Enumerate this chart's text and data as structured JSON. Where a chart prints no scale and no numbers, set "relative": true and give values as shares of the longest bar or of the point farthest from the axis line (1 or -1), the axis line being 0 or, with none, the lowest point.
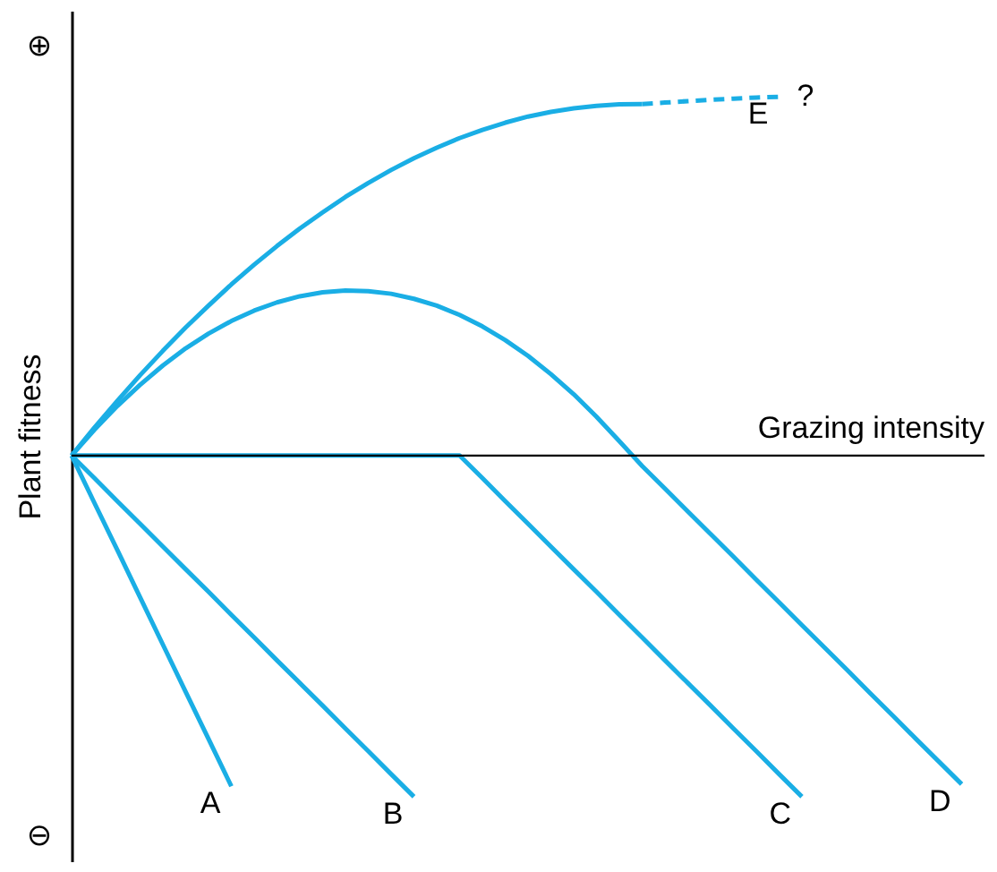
{
  "chart_data": {
    "type": "line",
    "relative": true,
    "xlabel": "Grazing intensity",
    "ylabel": "Plant fitness",
    "tick_labels": false,
    "grid": false,
    "marker": "none",
    "annotations": [
      "⊕",
      "⊖",
      "?"
    ],
    "categories": [
      null,
      null,
      null,
      null,
      null,
      null,
      null,
      null,
      null,
      null,
      null,
      null,
      null,
      null,
      null,
      null,
      null,
      null,
      null,
      null,
      null,
      null,
      null,
      null,
      null,
      null,
      null,
      null,
      null,
      null,
      null,
      null,
      null,
      null,
      null,
      null,
      null,
      null,
      null,
      null,
      null
    ],
    "series": [
      {
        "name": "A",
        "color": "#1aaee5",
        "values": [
          0,
          -0.132,
          -0.263,
          -0.395,
          -0.527,
          -0.659,
          -0.79,
          -0.922,
          null,
          null,
          null,
          null,
          null,
          null,
          null,
          null,
          null,
          null,
          null,
          null,
          null,
          null,
          null,
          null,
          null,
          null,
          null,
          null,
          null,
          null,
          null,
          null,
          null,
          null,
          null,
          null,
          null,
          null,
          null,
          null,
          null
        ]
      },
      {
        "name": "B",
        "color": "#1aaee5",
        "values": [
          0,
          -0.063,
          -0.127,
          -0.19,
          -0.254,
          -0.317,
          -0.38,
          -0.444,
          -0.507,
          -0.571,
          -0.634,
          -0.697,
          -0.761,
          -0.824,
          -0.888,
          -0.951,
          null,
          null,
          null,
          null,
          null,
          null,
          null,
          null,
          null,
          null,
          null,
          null,
          null,
          null,
          null,
          null,
          null,
          null,
          null,
          null,
          null,
          null,
          null,
          null,
          null
        ]
      },
      {
        "name": "C",
        "color": "#1aaee5",
        "values": [
          0,
          0,
          0,
          0,
          0,
          0,
          0,
          0,
          0,
          0,
          0,
          0,
          0,
          0,
          0,
          0,
          0,
          0,
          -0.063,
          -0.127,
          -0.19,
          -0.254,
          -0.317,
          -0.38,
          -0.444,
          -0.507,
          -0.571,
          -0.634,
          -0.697,
          -0.761,
          -0.824,
          -0.888,
          -0.951,
          null,
          null,
          null,
          null,
          null,
          null,
          null,
          null
        ]
      },
      {
        "name": "D",
        "color": "#1aaee5",
        "values": [
          0,
          0.072,
          0.138,
          0.197,
          0.251,
          0.299,
          0.34,
          0.375,
          0.404,
          0.427,
          0.444,
          0.455,
          0.46,
          0.458,
          0.451,
          0.437,
          0.418,
          0.392,
          0.36,
          0.322,
          0.278,
          0.227,
          0.171,
          0.108,
          0.04,
          -0.029,
          -0.092,
          -0.156,
          -0.219,
          -0.282,
          -0.346,
          -0.409,
          -0.473,
          -0.536,
          -0.599,
          -0.663,
          -0.726,
          -0.79,
          -0.853,
          -0.916,
          null
        ]
      },
      {
        "color": "#1aaee5",
        "line_style": "solid",
        "values": [
          0,
          0.078,
          0.152,
          0.224,
          0.292,
          0.357,
          0.418,
          0.477,
          0.532,
          0.584,
          0.633,
          0.678,
          0.721,
          0.76,
          0.796,
          0.829,
          0.858,
          0.885,
          0.908,
          0.928,
          0.945,
          0.958,
          0.968,
          0.975,
          0.979,
          0.98,
          null,
          null,
          null,
          null,
          null,
          null,
          null,
          null,
          null,
          null,
          null,
          null,
          null,
          null,
          null
        ]
      },
      {
        "name": "E",
        "color": "#1aaee5",
        "line_style": "dashed",
        "values": [
          null,
          null,
          null,
          null,
          null,
          null,
          null,
          null,
          null,
          null,
          null,
          null,
          null,
          null,
          null,
          null,
          null,
          null,
          null,
          null,
          null,
          null,
          null,
          null,
          null,
          0.98,
          0.984,
          0.988,
          0.992,
          0.995,
          0.998,
          1.0,
          null,
          null,
          null,
          null,
          null,
          null,
          null,
          null,
          null
        ]
      }
    ]
  }
}
